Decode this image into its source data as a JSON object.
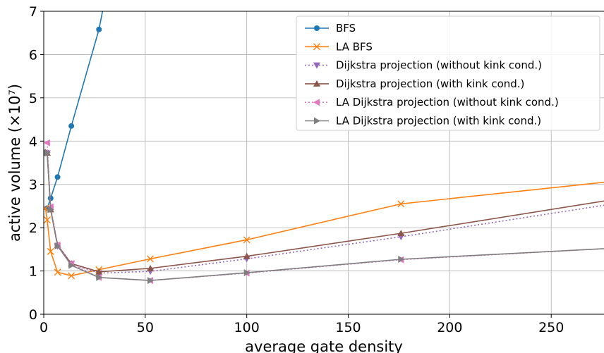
{
  "chart_data": {
    "type": "line",
    "xlabel": "average gate density",
    "ylabel": "active volume (×10⁷)",
    "xlim": [
      0,
      276
    ],
    "ylim": [
      0,
      7
    ],
    "xticks": [
      0,
      50,
      100,
      150,
      200,
      250
    ],
    "yticks": [
      0,
      1,
      2,
      3,
      4,
      5,
      6,
      7
    ],
    "grid": true,
    "legend_position": "top-right",
    "series": [
      {
        "name": "BFS",
        "color": "#1f77b4",
        "marker": "circle",
        "linestyle": "solid",
        "x": [
          1.7,
          3.4,
          6.8,
          13.6,
          27.2,
          31.5
        ],
        "y": [
          2.45,
          2.68,
          3.17,
          4.35,
          6.58,
          7.6
        ]
      },
      {
        "name": "LA BFS",
        "color": "#ff7f0e",
        "marker": "x",
        "linestyle": "solid",
        "x": [
          0.85,
          1.7,
          3.4,
          6.8,
          13.6,
          27.2,
          52.5,
          100,
          176,
          290
        ],
        "y": [
          2.45,
          2.18,
          1.45,
          0.97,
          0.89,
          1.03,
          1.28,
          1.72,
          2.55,
          3.12
        ]
      },
      {
        "name": "Dijkstra projection (without kink cond.)",
        "color": "#9467bd",
        "marker": "triangle-down",
        "linestyle": "dotted",
        "x": [
          0.85,
          1.7,
          3.4,
          6.8,
          13.6,
          27.2,
          52.5,
          100,
          176,
          290
        ],
        "y": [
          3.73,
          3.72,
          2.42,
          1.57,
          1.17,
          0.95,
          0.99,
          1.28,
          1.79,
          2.62
        ]
      },
      {
        "name": "Dijkstra projection (with kink cond.)",
        "color": "#8c564b",
        "marker": "triangle-up",
        "linestyle": "solid",
        "x": [
          0.85,
          1.7,
          3.4,
          6.8,
          13.6,
          27.2,
          52.5,
          100,
          176,
          290
        ],
        "y": [
          3.74,
          3.73,
          2.42,
          1.6,
          1.17,
          0.98,
          1.06,
          1.34,
          1.87,
          2.72
        ]
      },
      {
        "name": "LA Dijkstra projection (without kink cond.)",
        "color": "#e377c2",
        "marker": "triangle-left",
        "linestyle": "dotted",
        "x": [
          1.7,
          3.4,
          6.8,
          13.6,
          27.2,
          52.5,
          100,
          176,
          290
        ],
        "y": [
          3.96,
          2.48,
          1.6,
          1.17,
          0.85,
          0.78,
          0.95,
          1.26,
          1.55
        ]
      },
      {
        "name": "LA Dijkstra projection (with kink cond.)",
        "color": "#7f7f7f",
        "marker": "triangle-right",
        "linestyle": "solid",
        "x": [
          0.85,
          1.7,
          3.4,
          6.8,
          13.6,
          27.2,
          52.5,
          100,
          176,
          290
        ],
        "y": [
          3.74,
          3.73,
          2.42,
          1.58,
          1.13,
          0.85,
          0.78,
          0.96,
          1.27,
          1.55
        ]
      }
    ]
  }
}
